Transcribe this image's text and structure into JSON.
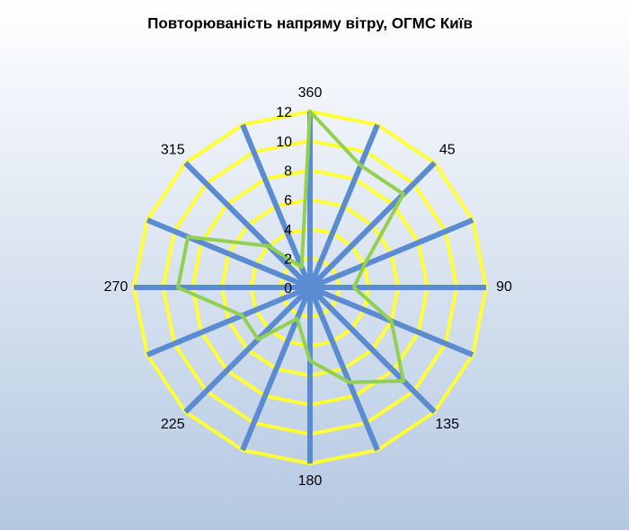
{
  "chart_data": {
    "type": "radar",
    "title": "Повторюваність напряму вітру, ОГМС Київ",
    "categories": [
      "360",
      null,
      "45",
      null,
      "90",
      null,
      "135",
      null,
      "180",
      null,
      "225",
      null,
      "270",
      null,
      "315",
      null
    ],
    "values": [
      12,
      9,
      9,
      4,
      3,
      6,
      9,
      7,
      5,
      2.3,
      5,
      5,
      9,
      9,
      4,
      1.5
    ],
    "color": "#92d050",
    "ylim": [
      0,
      12
    ],
    "yticks": [
      0,
      2,
      4,
      6,
      8,
      10,
      12
    ],
    "grid": true,
    "grid_color": "#ffff33",
    "axis_color": "#5b8bd0"
  }
}
